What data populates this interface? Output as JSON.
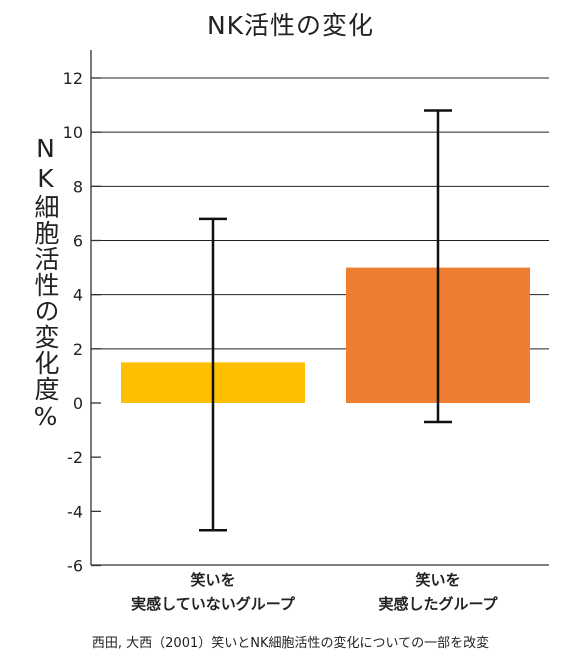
{
  "chart_data": {
    "type": "bar",
    "title": "NK活性の変化",
    "ylabel": "NK細胞活性の変化度%",
    "xlabel": "",
    "ylim": [
      -6.5,
      13
    ],
    "yticks": [
      12,
      10,
      8,
      6,
      4,
      2,
      0,
      -2,
      -4,
      -6
    ],
    "grid": true,
    "categories": [
      [
        "笑いを",
        "実感していないグループ"
      ],
      [
        "笑いを",
        "実感したグループ"
      ]
    ],
    "values": [
      1.5,
      5.0
    ],
    "error_bars": [
      {
        "low": -4.7,
        "high": 6.8
      },
      {
        "low": -0.7,
        "high": 10.8
      }
    ],
    "colors": [
      "#FDBF00",
      "#ED7D31"
    ]
  },
  "source_note": "西田, 大西（2001）笑いとNK細胞活性の変化についての一部を改変"
}
